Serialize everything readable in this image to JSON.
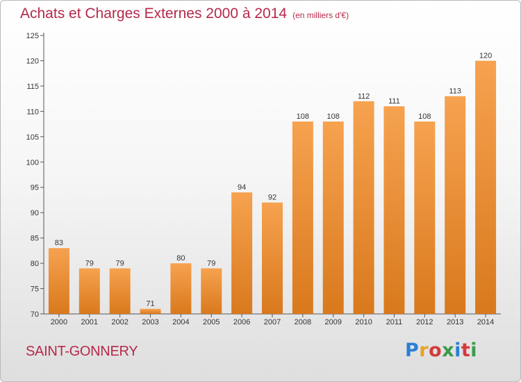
{
  "header": {
    "title": "Achats et Charges Externes 2000 à 2014",
    "subtitle": "(en milliers d'€)"
  },
  "footer": {
    "commune": "SAINT-GONNERY",
    "logo": "Proxiti",
    "logo_colors": [
      "#2a7fd6",
      "#e8a321",
      "#d23b3b",
      "#3a9a4b",
      "#2a7fd6",
      "#d23b3b",
      "#3a9a4b"
    ]
  },
  "colors": {
    "bar_light": "#f5a04e",
    "bar_dark": "#d97a1f",
    "title": "#b5294a"
  },
  "chart_data": {
    "type": "bar",
    "title": "Achats et Charges Externes 2000 à 2014",
    "subtitle": "(en milliers d'€)",
    "categories": [
      "2000",
      "2001",
      "2002",
      "2003",
      "2004",
      "2005",
      "2006",
      "2007",
      "2008",
      "2009",
      "2010",
      "2011",
      "2012",
      "2013",
      "2014"
    ],
    "values": [
      83,
      79,
      79,
      71,
      80,
      79,
      94,
      92,
      108,
      108,
      112,
      111,
      108,
      113,
      120
    ],
    "ylim": [
      70,
      125
    ],
    "yticks": [
      70,
      75,
      80,
      85,
      90,
      95,
      100,
      105,
      110,
      115,
      120,
      125
    ],
    "grid": false,
    "xlabel": "",
    "ylabel": ""
  }
}
